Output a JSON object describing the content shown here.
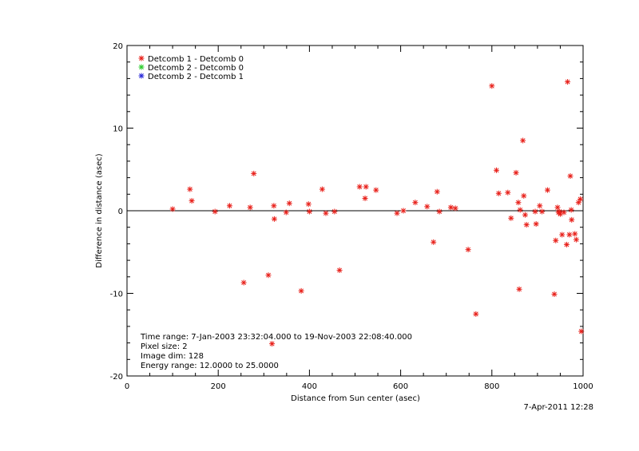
{
  "chart_data": {
    "type": "scatter",
    "title": "",
    "xlabel": "Distance from Sun center (asec)",
    "ylabel": "Difference in distance (asec)",
    "xlim": [
      0,
      1000
    ],
    "ylim": [
      -20,
      20
    ],
    "x_ticks": [
      "0",
      "200",
      "400",
      "600",
      "800",
      "1000"
    ],
    "y_ticks": [
      "20",
      "10",
      "0",
      "-10",
      "-20"
    ],
    "reference_line_y": 0,
    "legend_position": "top-left",
    "legend": [
      {
        "label": "Detcomb 1 - Detcomb 0",
        "color": "#e8201a",
        "marker": "*"
      },
      {
        "label": "Detcomb 2 - Detcomb 0",
        "color": "#2ecc2e",
        "marker": "*"
      },
      {
        "label": "Detcomb 2 - Detcomb 1",
        "color": "#2a2ad8",
        "marker": "*"
      }
    ],
    "series": [
      {
        "name": "Detcomb 1 - Detcomb 0",
        "color": "#e8201a",
        "points": [
          [
            100,
            0.2
          ],
          [
            138,
            2.6
          ],
          [
            142,
            1.2
          ],
          [
            193,
            -0.1
          ],
          [
            225,
            0.6
          ],
          [
            256,
            -8.7
          ],
          [
            270,
            0.4
          ],
          [
            278,
            4.5
          ],
          [
            310,
            -7.8
          ],
          [
            322,
            0.6
          ],
          [
            323,
            -1.0
          ],
          [
            318,
            -16.1
          ],
          [
            349,
            -0.2
          ],
          [
            356,
            0.9
          ],
          [
            382,
            -9.7
          ],
          [
            398,
            0.8
          ],
          [
            400,
            -0.1
          ],
          [
            428,
            2.6
          ],
          [
            436,
            -0.3
          ],
          [
            455,
            -0.1
          ],
          [
            466,
            -7.2
          ],
          [
            510,
            2.9
          ],
          [
            522,
            1.5
          ],
          [
            524,
            2.9
          ],
          [
            546,
            2.5
          ],
          [
            592,
            -0.3
          ],
          [
            606,
            0.0
          ],
          [
            632,
            1.0
          ],
          [
            658,
            0.5
          ],
          [
            672,
            -3.8
          ],
          [
            680,
            2.3
          ],
          [
            685,
            -0.1
          ],
          [
            710,
            0.4
          ],
          [
            720,
            0.3
          ],
          [
            748,
            -4.7
          ],
          [
            765,
            -12.5
          ],
          [
            800,
            15.1
          ],
          [
            810,
            4.9
          ],
          [
            815,
            2.1
          ],
          [
            835,
            2.2
          ],
          [
            842,
            -0.9
          ],
          [
            853,
            4.6
          ],
          [
            858,
            1.0
          ],
          [
            860,
            -9.5
          ],
          [
            862,
            0.1
          ],
          [
            868,
            8.5
          ],
          [
            870,
            1.8
          ],
          [
            873,
            -0.5
          ],
          [
            876,
            -1.7
          ],
          [
            895,
            -0.1
          ],
          [
            897,
            -1.6
          ],
          [
            905,
            0.6
          ],
          [
            910,
            -0.1
          ],
          [
            922,
            2.5
          ],
          [
            937,
            -10.1
          ],
          [
            940,
            -3.6
          ],
          [
            944,
            0.4
          ],
          [
            946,
            -0.2
          ],
          [
            948,
            -0.1
          ],
          [
            950,
            -0.4
          ],
          [
            954,
            -2.9
          ],
          [
            958,
            -0.2
          ],
          [
            964,
            -4.1
          ],
          [
            966,
            15.6
          ],
          [
            970,
            -2.9
          ],
          [
            972,
            4.2
          ],
          [
            974,
            0.1
          ],
          [
            975,
            -1.1
          ],
          [
            982,
            -2.8
          ],
          [
            985,
            -3.5
          ],
          [
            990,
            1.0
          ],
          [
            994,
            1.4
          ],
          [
            996,
            -14.6
          ]
        ]
      },
      {
        "name": "Detcomb 2 - Detcomb 0",
        "color": "#2ecc2e",
        "points": []
      },
      {
        "name": "Detcomb 2 - Detcomb 1",
        "color": "#2a2ad8",
        "points": []
      }
    ]
  },
  "info": {
    "time_range": "Time range:  7-Jan-2003 23:32:04.000 to 19-Nov-2003 22:08:40.000",
    "pixel_size": "Pixel size: 2",
    "image_dim": "Image dim: 128",
    "energy_range": "Energy range: 12.0000 to 25.0000"
  },
  "footer": {
    "timestamp": "7-Apr-2011 12:28"
  }
}
